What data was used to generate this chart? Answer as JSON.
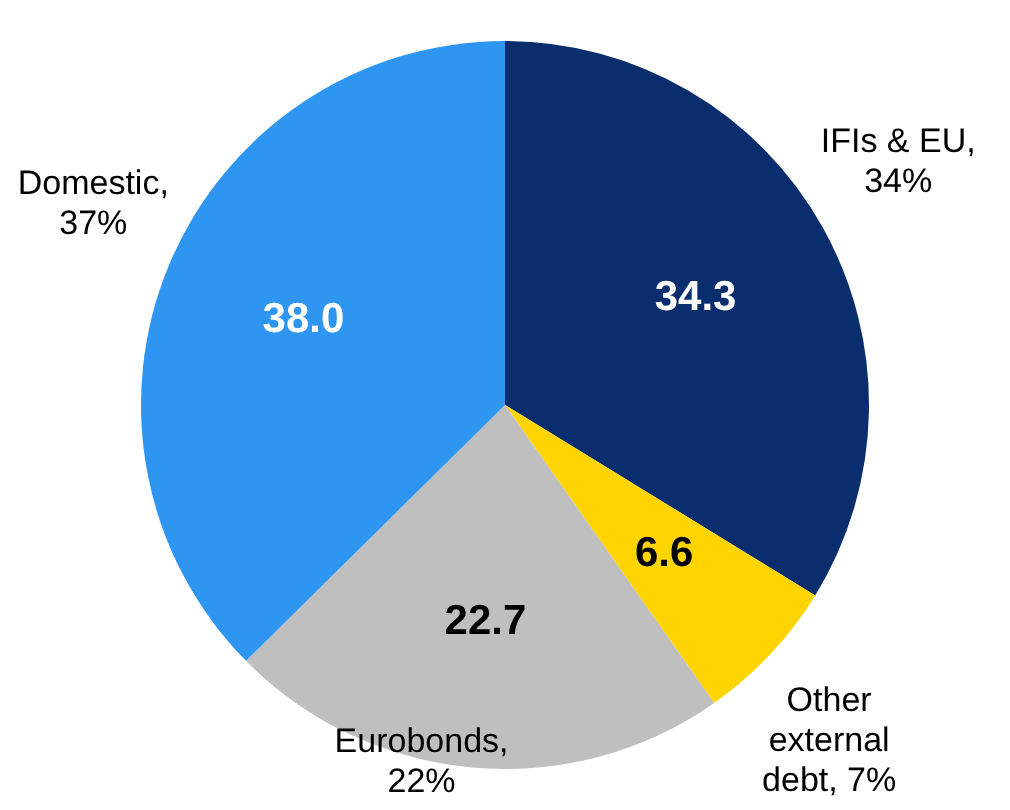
{
  "chart_data": {
    "type": "pie",
    "categories": [
      "IFIs & EU, 34%",
      "Other external debt, 7%",
      "Eurobonds, 22%",
      "Domestic, 37%"
    ],
    "values": [
      34.3,
      6.6,
      22.7,
      38.0
    ],
    "value_labels": [
      "34.3",
      "6.6",
      "22.7",
      "38.0"
    ],
    "colors": [
      "#0a2d6e",
      "#ffd400",
      "#bfbfbf",
      "#2e96f0"
    ],
    "legend": false
  }
}
